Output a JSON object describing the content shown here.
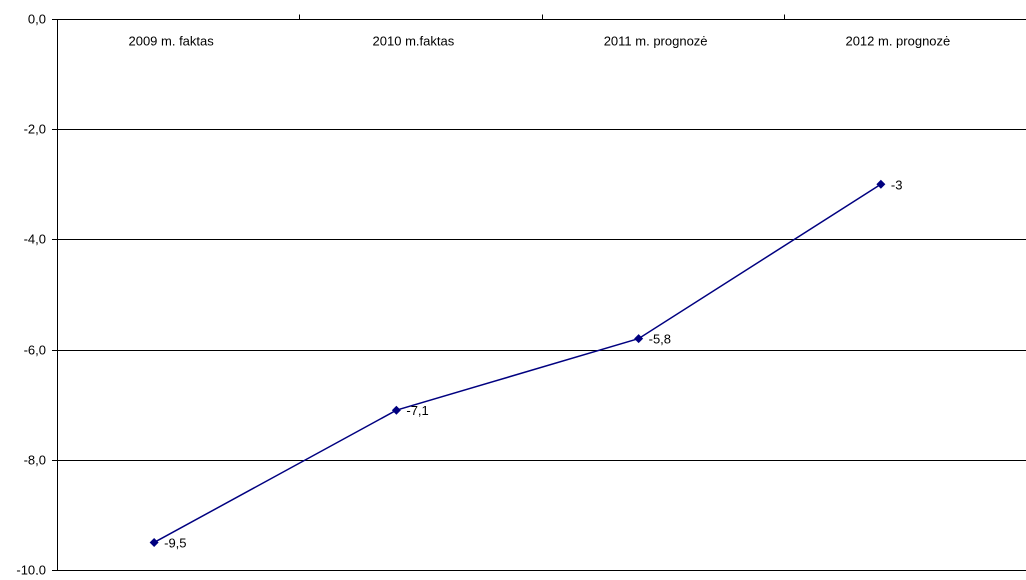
{
  "chart_data": {
    "type": "line",
    "categories": [
      "2009 m. faktas",
      "2010 m.faktas",
      "2011 m. prognozė",
      "2012 m. prognozė"
    ],
    "series": [
      {
        "values": [
          -9.5,
          -7.1,
          -5.8,
          -3
        ],
        "data_labels": [
          "-9,5",
          "-7,1",
          "-5,8",
          "-3"
        ],
        "color": "#000080"
      }
    ],
    "ylim": [
      -10,
      0
    ],
    "y_ticks": [
      0,
      -2,
      -4,
      -6,
      -8,
      -10
    ],
    "y_tick_labels": [
      "0,0",
      "-2,0",
      "-4,0",
      "-6,0",
      "-8,0",
      "-10,0"
    ],
    "x_axis_position": "top",
    "grid": "horizontal",
    "legend": "none",
    "axis_color": "#000000",
    "grid_color": "#000000"
  }
}
